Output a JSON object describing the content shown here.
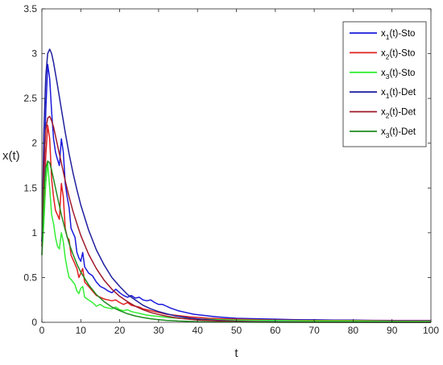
{
  "chart_data": {
    "type": "line",
    "title": "",
    "xlabel": "t",
    "ylabel": "x(t)",
    "xlim": [
      0,
      100
    ],
    "ylim": [
      0,
      3.5
    ],
    "xticks": [
      "0",
      "10",
      "20",
      "30",
      "40",
      "50",
      "60",
      "70",
      "80",
      "90",
      "100"
    ],
    "yticks": [
      "0",
      "0.5",
      "1",
      "1.5",
      "2",
      "2.5",
      "3",
      "3.5"
    ],
    "grid": false,
    "legend_position": "top-right",
    "series": [
      {
        "name_main": "x",
        "name_sub": "1",
        "name_rest": "(t)-Sto",
        "color": "#1a1adb",
        "points": [
          [
            0,
            0.9
          ],
          [
            0.5,
            1.5
          ],
          [
            1,
            2.35
          ],
          [
            1.5,
            2.88
          ],
          [
            2,
            2.72
          ],
          [
            2.5,
            2.35
          ],
          [
            3,
            2.05
          ],
          [
            3.5,
            1.9
          ],
          [
            4,
            1.82
          ],
          [
            4.5,
            1.75
          ],
          [
            5,
            2.05
          ],
          [
            5.5,
            1.9
          ],
          [
            6,
            1.55
          ],
          [
            6.5,
            1.4
          ],
          [
            7,
            1.28
          ],
          [
            7.5,
            1.05
          ],
          [
            8,
            1.0
          ],
          [
            8.5,
            0.95
          ],
          [
            9,
            0.78
          ],
          [
            9.5,
            0.72
          ],
          [
            10,
            0.68
          ],
          [
            10.5,
            0.78
          ],
          [
            11,
            0.62
          ],
          [
            12,
            0.55
          ],
          [
            13,
            0.52
          ],
          [
            14,
            0.45
          ],
          [
            15,
            0.4
          ],
          [
            16,
            0.38
          ],
          [
            17,
            0.35
          ],
          [
            18,
            0.33
          ],
          [
            19,
            0.37
          ],
          [
            20,
            0.33
          ],
          [
            21,
            0.3
          ],
          [
            22,
            0.28
          ],
          [
            23,
            0.3
          ],
          [
            24,
            0.27
          ],
          [
            25,
            0.28
          ],
          [
            26,
            0.25
          ],
          [
            27,
            0.24
          ],
          [
            28,
            0.25
          ],
          [
            29,
            0.22
          ],
          [
            30,
            0.2
          ],
          [
            31,
            0.2
          ],
          [
            32,
            0.18
          ],
          [
            33,
            0.16
          ],
          [
            35,
            0.13
          ],
          [
            37,
            0.11
          ],
          [
            39,
            0.09
          ],
          [
            41,
            0.08
          ],
          [
            43,
            0.07
          ],
          [
            45,
            0.06
          ],
          [
            48,
            0.05
          ],
          [
            50,
            0.045
          ],
          [
            55,
            0.04
          ],
          [
            60,
            0.035
          ],
          [
            65,
            0.03
          ],
          [
            70,
            0.028
          ],
          [
            75,
            0.025
          ],
          [
            80,
            0.025
          ],
          [
            85,
            0.022
          ],
          [
            90,
            0.02
          ],
          [
            95,
            0.02
          ],
          [
            100,
            0.02
          ]
        ]
      },
      {
        "name_main": "x",
        "name_sub": "2",
        "name_rest": "(t)-Sto",
        "color": "#e02020",
        "points": [
          [
            0,
            0.85
          ],
          [
            0.5,
            1.3
          ],
          [
            1,
            1.85
          ],
          [
            1.5,
            2.2
          ],
          [
            2,
            2.05
          ],
          [
            2.5,
            1.6
          ],
          [
            3,
            1.4
          ],
          [
            3.5,
            1.25
          ],
          [
            4,
            1.2
          ],
          [
            4.5,
            1.15
          ],
          [
            5,
            1.55
          ],
          [
            5.5,
            1.4
          ],
          [
            6,
            1.05
          ],
          [
            6.5,
            0.95
          ],
          [
            7,
            0.92
          ],
          [
            7.5,
            0.75
          ],
          [
            8,
            0.7
          ],
          [
            8.5,
            0.65
          ],
          [
            9,
            0.6
          ],
          [
            9.5,
            0.5
          ],
          [
            10,
            0.55
          ],
          [
            10.5,
            0.6
          ],
          [
            11,
            0.45
          ],
          [
            12,
            0.4
          ],
          [
            13,
            0.35
          ],
          [
            14,
            0.3
          ],
          [
            15,
            0.28
          ],
          [
            16,
            0.26
          ],
          [
            17,
            0.25
          ],
          [
            18,
            0.24
          ],
          [
            19,
            0.25
          ],
          [
            20,
            0.22
          ],
          [
            21,
            0.2
          ],
          [
            22,
            0.22
          ],
          [
            23,
            0.19
          ],
          [
            24,
            0.18
          ],
          [
            25,
            0.17
          ],
          [
            26,
            0.15
          ],
          [
            27,
            0.14
          ],
          [
            28,
            0.13
          ],
          [
            29,
            0.12
          ],
          [
            30,
            0.11
          ],
          [
            32,
            0.09
          ],
          [
            34,
            0.08
          ],
          [
            36,
            0.07
          ],
          [
            38,
            0.06
          ],
          [
            40,
            0.055
          ],
          [
            43,
            0.045
          ],
          [
            46,
            0.04
          ],
          [
            50,
            0.035
          ],
          [
            55,
            0.03
          ],
          [
            60,
            0.025
          ],
          [
            70,
            0.02
          ],
          [
            80,
            0.02
          ],
          [
            90,
            0.015
          ],
          [
            100,
            0.015
          ]
        ]
      },
      {
        "name_main": "x",
        "name_sub": "3",
        "name_rest": "(t)-Sto",
        "color": "#33ee33",
        "points": [
          [
            0,
            0.75
          ],
          [
            0.5,
            1.1
          ],
          [
            1,
            1.55
          ],
          [
            1.5,
            1.78
          ],
          [
            2,
            1.5
          ],
          [
            2.5,
            1.2
          ],
          [
            3,
            1.1
          ],
          [
            3.5,
            0.95
          ],
          [
            4,
            0.85
          ],
          [
            4.5,
            0.82
          ],
          [
            5,
            1.0
          ],
          [
            5.5,
            0.9
          ],
          [
            6,
            0.72
          ],
          [
            6.5,
            0.6
          ],
          [
            7,
            0.5
          ],
          [
            7.5,
            0.48
          ],
          [
            8,
            0.45
          ],
          [
            8.5,
            0.42
          ],
          [
            9,
            0.35
          ],
          [
            9.5,
            0.32
          ],
          [
            10,
            0.38
          ],
          [
            10.5,
            0.4
          ],
          [
            11,
            0.28
          ],
          [
            12,
            0.25
          ],
          [
            13,
            0.22
          ],
          [
            14,
            0.18
          ],
          [
            15,
            0.2
          ],
          [
            16,
            0.17
          ],
          [
            17,
            0.16
          ],
          [
            18,
            0.15
          ],
          [
            19,
            0.17
          ],
          [
            20,
            0.14
          ],
          [
            21,
            0.13
          ],
          [
            22,
            0.14
          ],
          [
            23,
            0.12
          ],
          [
            24,
            0.11
          ],
          [
            25,
            0.1
          ],
          [
            27,
            0.08
          ],
          [
            29,
            0.07
          ],
          [
            31,
            0.06
          ],
          [
            33,
            0.05
          ],
          [
            35,
            0.045
          ],
          [
            38,
            0.04
          ],
          [
            41,
            0.035
          ],
          [
            45,
            0.03
          ],
          [
            50,
            0.025
          ],
          [
            60,
            0.02
          ],
          [
            70,
            0.015
          ],
          [
            80,
            0.015
          ],
          [
            90,
            0.01
          ],
          [
            100,
            0.01
          ]
        ]
      },
      {
        "name_main": "x",
        "name_sub": "1",
        "name_rest": "(t)-Det",
        "color": "#1f1f9e",
        "points": [
          [
            0,
            0.9
          ],
          [
            0.5,
            2.1
          ],
          [
            1,
            2.75
          ],
          [
            1.5,
            3.0
          ],
          [
            2,
            3.05
          ],
          [
            2.5,
            3.0
          ],
          [
            3,
            2.9
          ],
          [
            4,
            2.65
          ],
          [
            5,
            2.38
          ],
          [
            6,
            2.12
          ],
          [
            7,
            1.88
          ],
          [
            8,
            1.67
          ],
          [
            9,
            1.48
          ],
          [
            10,
            1.31
          ],
          [
            12,
            1.03
          ],
          [
            14,
            0.81
          ],
          [
            16,
            0.64
          ],
          [
            18,
            0.5
          ],
          [
            20,
            0.4
          ],
          [
            22,
            0.31
          ],
          [
            24,
            0.25
          ],
          [
            26,
            0.19
          ],
          [
            28,
            0.15
          ],
          [
            30,
            0.12
          ],
          [
            32,
            0.095
          ],
          [
            34,
            0.075
          ],
          [
            36,
            0.06
          ],
          [
            38,
            0.048
          ],
          [
            40,
            0.038
          ],
          [
            45,
            0.022
          ],
          [
            50,
            0.013
          ],
          [
            55,
            0.008
          ],
          [
            60,
            0.005
          ],
          [
            70,
            0.002
          ],
          [
            80,
            0.001
          ],
          [
            90,
            0.0005
          ],
          [
            100,
            0.0002
          ]
        ]
      },
      {
        "name_main": "x",
        "name_sub": "2",
        "name_rest": "(t)-Det",
        "color": "#9e1a2a",
        "points": [
          [
            0,
            0.85
          ],
          [
            0.5,
            1.75
          ],
          [
            1,
            2.15
          ],
          [
            1.5,
            2.28
          ],
          [
            2,
            2.3
          ],
          [
            2.5,
            2.25
          ],
          [
            3,
            2.18
          ],
          [
            4,
            1.98
          ],
          [
            5,
            1.78
          ],
          [
            6,
            1.58
          ],
          [
            7,
            1.4
          ],
          [
            8,
            1.24
          ],
          [
            9,
            1.1
          ],
          [
            10,
            0.97
          ],
          [
            12,
            0.76
          ],
          [
            14,
            0.6
          ],
          [
            16,
            0.47
          ],
          [
            18,
            0.37
          ],
          [
            20,
            0.29
          ],
          [
            22,
            0.23
          ],
          [
            24,
            0.18
          ],
          [
            26,
            0.14
          ],
          [
            28,
            0.11
          ],
          [
            30,
            0.087
          ],
          [
            32,
            0.068
          ],
          [
            34,
            0.054
          ],
          [
            36,
            0.042
          ],
          [
            38,
            0.033
          ],
          [
            40,
            0.026
          ],
          [
            45,
            0.015
          ],
          [
            50,
            0.009
          ],
          [
            55,
            0.005
          ],
          [
            60,
            0.003
          ],
          [
            70,
            0.001
          ],
          [
            80,
            0.0005
          ],
          [
            90,
            0.0002
          ],
          [
            100,
            0.0001
          ]
        ]
      },
      {
        "name_main": "x",
        "name_sub": "3",
        "name_rest": "(t)-Det",
        "color": "#1f8c1f",
        "points": [
          [
            0,
            0.75
          ],
          [
            0.5,
            1.45
          ],
          [
            1,
            1.72
          ],
          [
            1.5,
            1.8
          ],
          [
            2,
            1.78
          ],
          [
            2.5,
            1.7
          ],
          [
            3,
            1.6
          ],
          [
            4,
            1.4
          ],
          [
            5,
            1.2
          ],
          [
            6,
            1.03
          ],
          [
            7,
            0.88
          ],
          [
            8,
            0.76
          ],
          [
            9,
            0.65
          ],
          [
            10,
            0.56
          ],
          [
            12,
            0.42
          ],
          [
            14,
            0.31
          ],
          [
            16,
            0.23
          ],
          [
            18,
            0.17
          ],
          [
            20,
            0.13
          ],
          [
            22,
            0.095
          ],
          [
            24,
            0.071
          ],
          [
            26,
            0.053
          ],
          [
            28,
            0.04
          ],
          [
            30,
            0.03
          ],
          [
            32,
            0.022
          ],
          [
            35,
            0.014
          ],
          [
            40,
            0.007
          ],
          [
            45,
            0.003
          ],
          [
            50,
            0.0015
          ],
          [
            60,
            0.0004
          ],
          [
            70,
            0.0001
          ],
          [
            100,
            0.0
          ]
        ]
      }
    ]
  }
}
